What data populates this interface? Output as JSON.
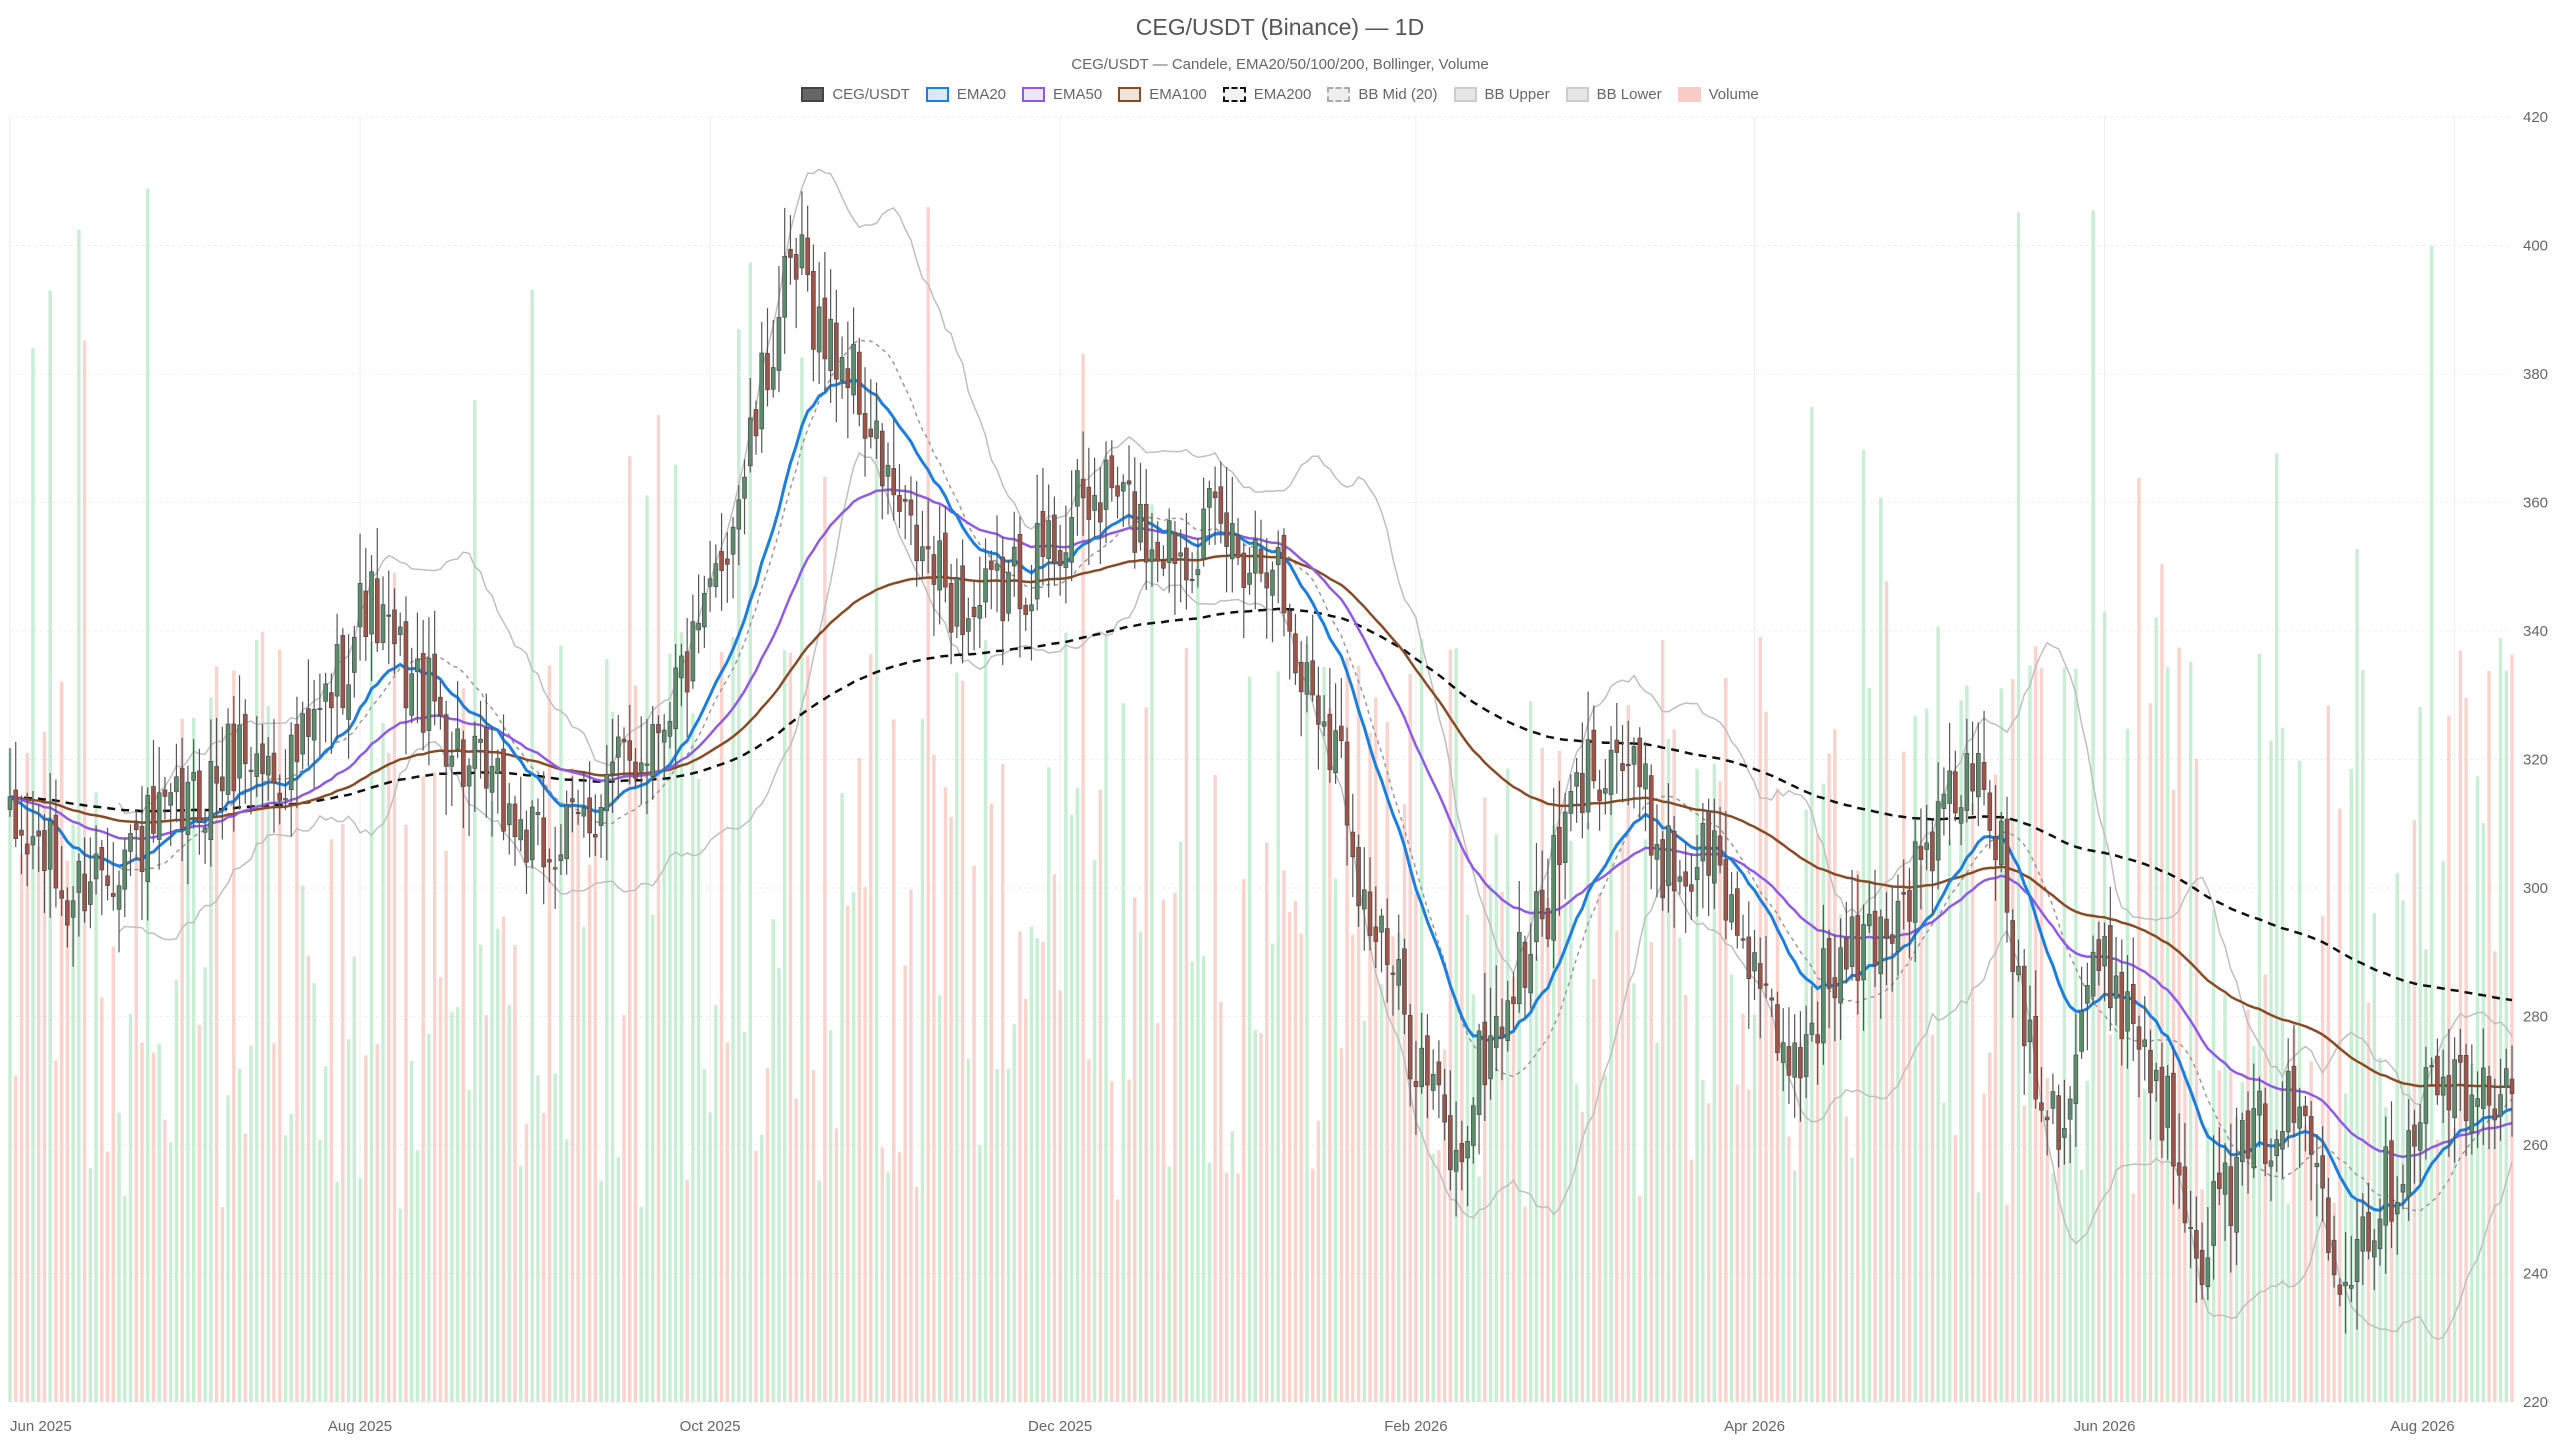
{
  "title": "CEG/USDT (Binance) — 1D",
  "subtitle": "CEG/USDT — Candele, EMA20/50/100/200, Bollinger, Volume",
  "legend": [
    {
      "label": "CEG/USDT",
      "fill": "#666666",
      "stroke": "#444444",
      "dash": false
    },
    {
      "label": "EMA20",
      "fill": "#dbe9f7",
      "stroke": "#1a7fe0",
      "dash": false
    },
    {
      "label": "EMA50",
      "fill": "#ece5fb",
      "stroke": "#9059ea",
      "dash": false
    },
    {
      "label": "EMA100",
      "fill": "#efe3dc",
      "stroke": "#8b4a24",
      "dash": false
    },
    {
      "label": "EMA200",
      "fill": "#f2f2f2",
      "stroke": "#111111",
      "dash": true
    },
    {
      "label": "BB Mid (20)",
      "fill": "#eeeeee",
      "stroke": "#aaaaaa",
      "dash": true
    },
    {
      "label": "BB Upper",
      "fill": "#e6e6e6",
      "stroke": "#cccccc",
      "dash": false
    },
    {
      "label": "BB Lower",
      "fill": "#e6e6e6",
      "stroke": "#cccccc",
      "dash": false
    },
    {
      "label": "Volume",
      "fill": "#f8cbc4",
      "stroke": "#f8cbc4",
      "dash": false
    }
  ],
  "colors": {
    "up": "#5b8c6b",
    "down": "#9e5549",
    "wick": "#555555",
    "volume_up": "#b5e8c6",
    "volume_down": "#f8c4bc",
    "ema20": "#1a7fe0",
    "ema50": "#9059ea",
    "ema100": "#8b4a24",
    "ema200": "#111111",
    "bb_band": "#bfbfbf",
    "bb_mid": "#9a9a9a",
    "grid": "#eeeeee"
  },
  "chart_data": {
    "type": "candlestick",
    "x_ticks": [
      {
        "label": "Jun 2025",
        "day": 0
      },
      {
        "label": "Aug 2025",
        "day": 61
      },
      {
        "label": "Oct 2025",
        "day": 122
      },
      {
        "label": "Dec 2025",
        "day": 183
      },
      {
        "label": "Feb 2026",
        "day": 245
      },
      {
        "label": "Apr 2026",
        "day": 304
      },
      {
        "label": "Jun 2026",
        "day": 365
      },
      {
        "label": "Aug 2026",
        "day": 426
      }
    ],
    "x_range_days": [
      0,
      436
    ],
    "y_ticks": [
      220,
      240,
      260,
      280,
      300,
      320,
      340,
      360,
      380,
      400,
      420
    ],
    "ylim": [
      220,
      420
    ],
    "price_anchors": [
      [
        0,
        308
      ],
      [
        6,
        306
      ],
      [
        10,
        297
      ],
      [
        14,
        303
      ],
      [
        20,
        306
      ],
      [
        28,
        310
      ],
      [
        34,
        315
      ],
      [
        40,
        322
      ],
      [
        46,
        318
      ],
      [
        52,
        322
      ],
      [
        58,
        335
      ],
      [
        62,
        345
      ],
      [
        66,
        338
      ],
      [
        70,
        332
      ],
      [
        75,
        327
      ],
      [
        80,
        318
      ],
      [
        86,
        313
      ],
      [
        92,
        305
      ],
      [
        98,
        308
      ],
      [
        104,
        316
      ],
      [
        110,
        322
      ],
      [
        116,
        332
      ],
      [
        120,
        337
      ],
      [
        124,
        352
      ],
      [
        130,
        372
      ],
      [
        134,
        390
      ],
      [
        138,
        396
      ],
      [
        142,
        385
      ],
      [
        146,
        382
      ],
      [
        150,
        370
      ],
      [
        156,
        355
      ],
      [
        162,
        348
      ],
      [
        168,
        342
      ],
      [
        174,
        347
      ],
      [
        180,
        352
      ],
      [
        186,
        358
      ],
      [
        192,
        362
      ],
      [
        198,
        355
      ],
      [
        204,
        354
      ],
      [
        210,
        356
      ],
      [
        216,
        352
      ],
      [
        220,
        354
      ],
      [
        224,
        335
      ],
      [
        228,
        330
      ],
      [
        232,
        320
      ],
      [
        236,
        298
      ],
      [
        240,
        288
      ],
      [
        244,
        277
      ],
      [
        248,
        268
      ],
      [
        252,
        256
      ],
      [
        256,
        272
      ],
      [
        262,
        285
      ],
      [
        268,
        298
      ],
      [
        272,
        312
      ],
      [
        276,
        320
      ],
      [
        280,
        322
      ],
      [
        284,
        315
      ],
      [
        288,
        305
      ],
      [
        292,
        302
      ],
      [
        296,
        307
      ],
      [
        300,
        296
      ],
      [
        304,
        290
      ],
      [
        308,
        271
      ],
      [
        312,
        275
      ],
      [
        316,
        285
      ],
      [
        322,
        290
      ],
      [
        328,
        296
      ],
      [
        334,
        305
      ],
      [
        338,
        313
      ],
      [
        342,
        318
      ],
      [
        346,
        310
      ],
      [
        350,
        285
      ],
      [
        354,
        270
      ],
      [
        358,
        265
      ],
      [
        362,
        285
      ],
      [
        366,
        287
      ],
      [
        370,
        280
      ],
      [
        374,
        270
      ],
      [
        378,
        258
      ],
      [
        382,
        245
      ],
      [
        386,
        252
      ],
      [
        392,
        262
      ],
      [
        398,
        266
      ],
      [
        402,
        258
      ],
      [
        406,
        242
      ],
      [
        410,
        248
      ],
      [
        416,
        256
      ],
      [
        420,
        268
      ],
      [
        424,
        270
      ],
      [
        428,
        266
      ],
      [
        432,
        268
      ],
      [
        436,
        274
      ]
    ],
    "volume_scale": [
      0,
      1000
    ]
  }
}
